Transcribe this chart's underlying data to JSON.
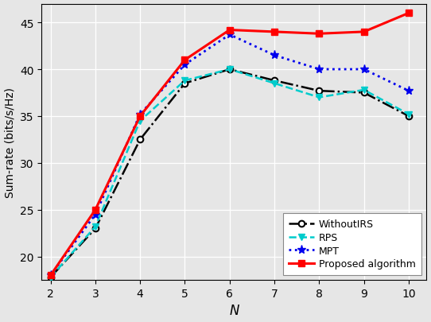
{
  "x": [
    2,
    3,
    4,
    5,
    6,
    7,
    8,
    9,
    10
  ],
  "proposed": [
    18.0,
    25.0,
    35.0,
    41.0,
    44.2,
    44.0,
    43.8,
    44.0,
    46.0
  ],
  "mpt": [
    18.0,
    24.5,
    35.2,
    40.5,
    43.7,
    41.5,
    40.0,
    40.0,
    37.7
  ],
  "rps": [
    17.8,
    23.2,
    34.5,
    38.8,
    40.0,
    38.5,
    37.0,
    37.8,
    35.2
  ],
  "without": [
    17.8,
    23.0,
    32.5,
    38.5,
    40.0,
    38.8,
    37.7,
    37.5,
    35.0
  ],
  "proposed_color": "#ff0000",
  "mpt_color": "#0000ee",
  "rps_color": "#00cccc",
  "without_color": "#000000",
  "xlabel": "N",
  "ylabel": "Sum-rate (bits/s/Hz)",
  "ylim": [
    17.5,
    47
  ],
  "xlim": [
    1.8,
    10.4
  ],
  "yticks": [
    20,
    25,
    30,
    35,
    40,
    45
  ],
  "xticks": [
    2,
    3,
    4,
    5,
    6,
    7,
    8,
    9,
    10
  ],
  "legend_proposed": "Proposed algorithm",
  "legend_mpt": "MPT",
  "legend_rps": "RPS",
  "legend_without": "WithoutIRS",
  "grid_color": "#ffffff",
  "bg_color": "#e6e6e6"
}
